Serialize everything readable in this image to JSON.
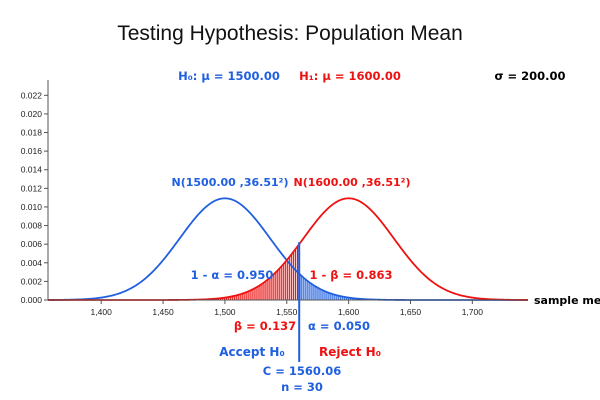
{
  "chart_data": {
    "type": "line",
    "title": "Testing Hypothesis: Population Mean",
    "h0_label": "H₀: μ = 1500.00",
    "h1_label": "H₁: μ = 1600.00",
    "sigma_label": "σ = 200.00",
    "xlabel": "sample mean",
    "xlim": [
      1357,
      1745
    ],
    "ylim": [
      0,
      0.023
    ],
    "x_ticks": [
      1400,
      1450,
      1500,
      1550,
      1600,
      1650,
      1700
    ],
    "x_tick_labels": [
      "1,400",
      "1,450",
      "1,500",
      "1,550",
      "1,600",
      "1,650",
      "1,700"
    ],
    "y_ticks": [
      0.0,
      0.002,
      0.004,
      0.006,
      0.008,
      0.01,
      0.012,
      0.014,
      0.016,
      0.018,
      0.02,
      0.022
    ],
    "y_tick_labels": [
      "0.000",
      "0.002",
      "0.004",
      "0.006",
      "0.008",
      "0.010",
      "0.012",
      "0.014",
      "0.016",
      "0.018",
      "0.020",
      "0.022"
    ],
    "series": [
      {
        "name": "N(1500.00 ,36.51²)",
        "mean": 1500.0,
        "sd": 36.51,
        "color": "#1f5fe0"
      },
      {
        "name": "N(1600.00 ,36.51²)",
        "mean": 1600.0,
        "sd": 36.51,
        "color": "#ee1111"
      }
    ],
    "critical_value": 1560.06,
    "annotations": {
      "one_minus_alpha": "1 - α = 0.950",
      "one_minus_beta": "1 - β = 0.863",
      "beta": "β = 0.137",
      "alpha": "α = 0.050",
      "accept": "Accept H₀",
      "reject": "Reject H₀",
      "c": "C = 1560.06",
      "n": "n = 30"
    },
    "colors": {
      "h0": "#1f5fe0",
      "h1": "#ee1111",
      "axis": "#555555",
      "text": "#000000"
    }
  }
}
